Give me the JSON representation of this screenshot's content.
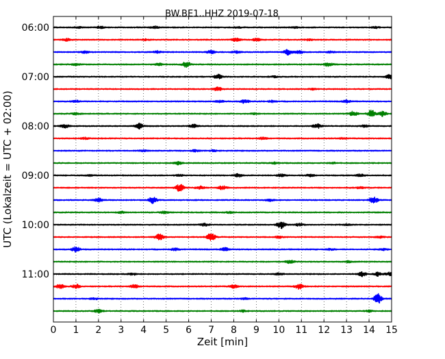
{
  "chart_data": {
    "type": "line",
    "title": "BW.BE1..HHZ 2019-07-18",
    "xlabel": "Zeit  [min]",
    "ylabel": "UTC (Lokalzeit = UTC + 02:00)",
    "xlim": [
      0,
      15
    ],
    "x_ticks": [
      "0",
      "1",
      "2",
      "3",
      "4",
      "5",
      "6",
      "7",
      "8",
      "9",
      "10",
      "11",
      "12",
      "13",
      "14",
      "15"
    ],
    "y_ticks": [
      "06:00",
      "07:00",
      "08:00",
      "09:00",
      "10:00",
      "11:00"
    ],
    "grid": "vertical dotted at each minute",
    "trace_colors": [
      "#000000",
      "#ff0000",
      "#0000ff",
      "#008000"
    ],
    "traces": [
      {
        "start": "06:00",
        "events": [
          [
            1.1,
            0.12
          ],
          [
            2.1,
            0.15
          ],
          [
            4.5,
            0.18
          ],
          [
            8.2,
            0.1
          ],
          [
            10.7,
            0.1
          ],
          [
            14.3,
            0.12
          ]
        ]
      },
      {
        "start": "06:15",
        "events": [
          [
            0.6,
            0.18
          ],
          [
            4.1,
            0.1
          ],
          [
            8.1,
            0.25
          ],
          [
            9.0,
            0.2
          ],
          [
            11.3,
            0.1
          ]
        ]
      },
      {
        "start": "06:30",
        "events": [
          [
            1.4,
            0.2
          ],
          [
            4.6,
            0.18
          ],
          [
            7.0,
            0.25
          ],
          [
            8.1,
            0.15
          ],
          [
            10.4,
            0.4
          ],
          [
            10.9,
            0.2
          ],
          [
            12.3,
            0.12
          ]
        ]
      },
      {
        "start": "06:45",
        "events": [
          [
            1.0,
            0.12
          ],
          [
            4.7,
            0.15
          ],
          [
            5.9,
            0.45
          ],
          [
            12.2,
            0.3
          ]
        ]
      },
      {
        "start": "07:00",
        "events": [
          [
            7.3,
            0.35
          ],
          [
            9.8,
            0.1
          ],
          [
            14.9,
            0.3
          ]
        ]
      },
      {
        "start": "07:15",
        "events": [
          [
            7.3,
            0.3
          ],
          [
            11.5,
            0.1
          ]
        ]
      },
      {
        "start": "07:30",
        "events": [
          [
            1.0,
            0.15
          ],
          [
            7.4,
            0.15
          ],
          [
            8.5,
            0.3
          ],
          [
            9.7,
            0.15
          ],
          [
            13.0,
            0.2
          ]
        ]
      },
      {
        "start": "07:45",
        "events": [
          [
            1.0,
            0.15
          ],
          [
            8.9,
            0.1
          ],
          [
            13.3,
            0.35
          ],
          [
            14.1,
            0.55
          ],
          [
            14.6,
            0.4
          ]
        ]
      },
      {
        "start": "08:00",
        "events": [
          [
            0.5,
            0.3
          ],
          [
            3.8,
            0.4
          ],
          [
            6.2,
            0.25
          ],
          [
            11.7,
            0.35
          ],
          [
            13.8,
            0.15
          ]
        ]
      },
      {
        "start": "08:15",
        "events": [
          [
            1.4,
            0.15
          ],
          [
            9.3,
            0.15
          ],
          [
            12.8,
            0.1
          ]
        ]
      },
      {
        "start": "08:30",
        "events": [
          [
            4.0,
            0.1
          ],
          [
            6.3,
            0.15
          ],
          [
            7.1,
            0.12
          ]
        ]
      },
      {
        "start": "08:45",
        "events": [
          [
            5.5,
            0.25
          ],
          [
            9.8,
            0.12
          ],
          [
            12.4,
            0.1
          ]
        ]
      },
      {
        "start": "09:00",
        "events": [
          [
            1.6,
            0.1
          ],
          [
            5.6,
            0.12
          ],
          [
            8.2,
            0.25
          ],
          [
            10.1,
            0.2
          ],
          [
            11.4,
            0.2
          ],
          [
            13.6,
            0.2
          ]
        ]
      },
      {
        "start": "09:15",
        "events": [
          [
            5.6,
            0.6
          ],
          [
            6.5,
            0.25
          ],
          [
            7.5,
            0.3
          ],
          [
            13.6,
            0.12
          ]
        ]
      },
      {
        "start": "09:30",
        "events": [
          [
            2.0,
            0.3
          ],
          [
            4.4,
            0.5
          ],
          [
            9.6,
            0.15
          ],
          [
            14.2,
            0.55
          ]
        ]
      },
      {
        "start": "09:45",
        "events": [
          [
            3.0,
            0.12
          ],
          [
            4.9,
            0.2
          ],
          [
            7.8,
            0.1
          ]
        ]
      },
      {
        "start": "10:00",
        "events": [
          [
            6.7,
            0.2
          ],
          [
            10.1,
            0.6
          ],
          [
            10.9,
            0.2
          ],
          [
            13.0,
            0.1
          ]
        ]
      },
      {
        "start": "10:15",
        "events": [
          [
            4.7,
            0.45
          ],
          [
            7.0,
            0.65
          ],
          [
            10.0,
            0.15
          ],
          [
            14.5,
            0.15
          ]
        ]
      },
      {
        "start": "10:30",
        "events": [
          [
            1.0,
            0.4
          ],
          [
            5.4,
            0.2
          ],
          [
            7.6,
            0.25
          ],
          [
            12.3,
            0.12
          ],
          [
            14.6,
            0.15
          ]
        ]
      },
      {
        "start": "10:45",
        "events": [
          [
            10.5,
            0.25
          ],
          [
            13.1,
            0.1
          ]
        ]
      },
      {
        "start": "11:00",
        "events": [
          [
            3.5,
            0.15
          ],
          [
            10.0,
            0.15
          ],
          [
            13.7,
            0.35
          ],
          [
            14.4,
            0.3
          ],
          [
            14.9,
            0.25
          ]
        ]
      },
      {
        "start": "11:15",
        "events": [
          [
            0.3,
            0.35
          ],
          [
            1.0,
            0.3
          ],
          [
            3.6,
            0.25
          ],
          [
            8.0,
            0.25
          ],
          [
            10.9,
            0.45
          ]
        ]
      },
      {
        "start": "11:30",
        "events": [
          [
            1.8,
            0.12
          ],
          [
            8.5,
            0.1
          ],
          [
            14.4,
            0.8
          ]
        ]
      },
      {
        "start": "11:45",
        "events": [
          [
            2.0,
            0.25
          ],
          [
            8.4,
            0.12
          ],
          [
            14.0,
            0.12
          ]
        ]
      }
    ]
  }
}
